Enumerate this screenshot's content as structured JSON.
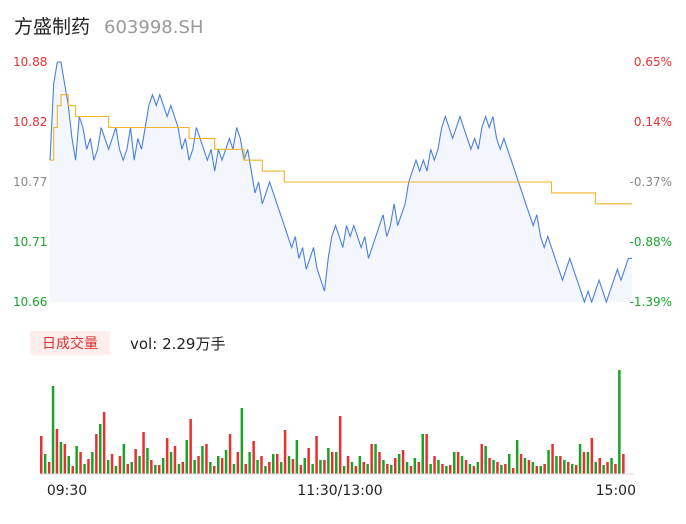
{
  "header": {
    "name": "方盛制药",
    "code": "603998.SH"
  },
  "volume_panel": {
    "tab_label": "日成交量",
    "vol_prefix": "vol:",
    "vol_value": "2.29万手"
  },
  "colors": {
    "up": "#e8302f",
    "down": "#1aa32a",
    "price_line": "#4a7fe0",
    "avg_line": "#f0b429",
    "flat": "#888888"
  },
  "chart_data": {
    "type": "line",
    "y_left_ticks": [
      "10.88",
      "10.82",
      "10.77",
      "10.71",
      "10.66"
    ],
    "y_right_ticks": [
      "0.65%",
      "0.14%",
      "-0.37%",
      "-0.88%",
      "-1.39%"
    ],
    "ylim": [
      10.66,
      10.88
    ],
    "x_ticks": [
      "09:30",
      "11:30/13:00",
      "15:00"
    ],
    "price": [
      10.79,
      10.86,
      10.88,
      10.88,
      10.86,
      10.84,
      10.81,
      10.79,
      10.83,
      10.82,
      10.8,
      10.81,
      10.79,
      10.8,
      10.82,
      10.81,
      10.8,
      10.81,
      10.82,
      10.8,
      10.79,
      10.8,
      10.82,
      10.79,
      10.81,
      10.8,
      10.82,
      10.84,
      10.85,
      10.84,
      10.85,
      10.84,
      10.83,
      10.84,
      10.83,
      10.82,
      10.8,
      10.81,
      10.79,
      10.8,
      10.82,
      10.81,
      10.8,
      10.79,
      10.8,
      10.78,
      10.8,
      10.79,
      10.8,
      10.81,
      10.8,
      10.82,
      10.81,
      10.79,
      10.8,
      10.78,
      10.76,
      10.77,
      10.75,
      10.76,
      10.77,
      10.76,
      10.75,
      10.74,
      10.73,
      10.72,
      10.71,
      10.72,
      10.7,
      10.71,
      10.69,
      10.7,
      10.71,
      10.69,
      10.68,
      10.67,
      10.7,
      10.72,
      10.73,
      10.72,
      10.71,
      10.73,
      10.72,
      10.73,
      10.72,
      10.71,
      10.72,
      10.7,
      10.71,
      10.72,
      10.73,
      10.74,
      10.72,
      10.73,
      10.75,
      10.73,
      10.74,
      10.75,
      10.77,
      10.78,
      10.79,
      10.78,
      10.79,
      10.78,
      10.8,
      10.79,
      10.8,
      10.82,
      10.83,
      10.82,
      10.81,
      10.82,
      10.83,
      10.82,
      10.81,
      10.8,
      10.81,
      10.8,
      10.82,
      10.83,
      10.82,
      10.83,
      10.81,
      10.8,
      10.81,
      10.8,
      10.79,
      10.78,
      10.77,
      10.76,
      10.75,
      10.74,
      10.73,
      10.74,
      10.72,
      10.71,
      10.72,
      10.71,
      10.7,
      10.69,
      10.68,
      10.69,
      10.7,
      10.69,
      10.68,
      10.67,
      10.66,
      10.67,
      10.66,
      10.67,
      10.68,
      10.67,
      10.66,
      10.67,
      10.68,
      10.69,
      10.68,
      10.69,
      10.7,
      10.7
    ],
    "avg": [
      10.79,
      10.82,
      10.84,
      10.85,
      10.85,
      10.84,
      10.84,
      10.83,
      10.83,
      10.83,
      10.83,
      10.83,
      10.83,
      10.83,
      10.83,
      10.83,
      10.82,
      10.82,
      10.82,
      10.82,
      10.82,
      10.82,
      10.82,
      10.82,
      10.82,
      10.82,
      10.82,
      10.82,
      10.82,
      10.82,
      10.82,
      10.82,
      10.82,
      10.82,
      10.82,
      10.82,
      10.82,
      10.82,
      10.81,
      10.81,
      10.81,
      10.81,
      10.81,
      10.81,
      10.81,
      10.8,
      10.8,
      10.8,
      10.8,
      10.8,
      10.8,
      10.8,
      10.8,
      10.79,
      10.79,
      10.79,
      10.79,
      10.79,
      10.78,
      10.78,
      10.78,
      10.78,
      10.78,
      10.78,
      10.77,
      10.77,
      10.77,
      10.77,
      10.77,
      10.77,
      10.77,
      10.77,
      10.77,
      10.77,
      10.77,
      10.77,
      10.77,
      10.77,
      10.77,
      10.77,
      10.77,
      10.77,
      10.77,
      10.77,
      10.77,
      10.77,
      10.77,
      10.77,
      10.77,
      10.77,
      10.77,
      10.77,
      10.77,
      10.77,
      10.77,
      10.77,
      10.77,
      10.77,
      10.77,
      10.77,
      10.77,
      10.77,
      10.77,
      10.77,
      10.77,
      10.77,
      10.77,
      10.77,
      10.77,
      10.77,
      10.77,
      10.77,
      10.77,
      10.77,
      10.77,
      10.77,
      10.77,
      10.77,
      10.77,
      10.77,
      10.77,
      10.77,
      10.77,
      10.77,
      10.77,
      10.77,
      10.77,
      10.77,
      10.77,
      10.77,
      10.77,
      10.77,
      10.77,
      10.77,
      10.77,
      10.77,
      10.77,
      10.76,
      10.76,
      10.76,
      10.76,
      10.76,
      10.76,
      10.76,
      10.76,
      10.76,
      10.76,
      10.76,
      10.76,
      10.75,
      10.75,
      10.75,
      10.75,
      10.75,
      10.75,
      10.75,
      10.75,
      10.75,
      10.75,
      10.75
    ],
    "volume_up": [
      38,
      12,
      45,
      30,
      8,
      22,
      15,
      40,
      62,
      20,
      18,
      10,
      25,
      42,
      14,
      9,
      36,
      28,
      12,
      55,
      18,
      30,
      8,
      16,
      40,
      22,
      10,
      33,
      18,
      12,
      20,
      44,
      15,
      9,
      26,
      38,
      14,
      22,
      58,
      18,
      8,
      12,
      30,
      22,
      10,
      16,
      24,
      8,
      12,
      40,
      18,
      10,
      9,
      22,
      14,
      8,
      30,
      16,
      12,
      10,
      6,
      20,
      14,
      8,
      10,
      30,
      18,
      12,
      9,
      22,
      36,
      16,
      12,
      10,
      20
    ],
    "volume_down": [
      20,
      88,
      32,
      18,
      28,
      10,
      22,
      50,
      14,
      8,
      30,
      12,
      18,
      26,
      9,
      16,
      22,
      10,
      34,
      14,
      28,
      12,
      18,
      24,
      10,
      66,
      22,
      14,
      8,
      20,
      12,
      18,
      34,
      16,
      10,
      14,
      26,
      22,
      8,
      12,
      18,
      10,
      30,
      14,
      9,
      20,
      12,
      16,
      40,
      10,
      14,
      8,
      22,
      18,
      10,
      12,
      28,
      14,
      9,
      20,
      34,
      16,
      12,
      8,
      24,
      18,
      14,
      10,
      30,
      22,
      12,
      9,
      16,
      104
    ]
  }
}
